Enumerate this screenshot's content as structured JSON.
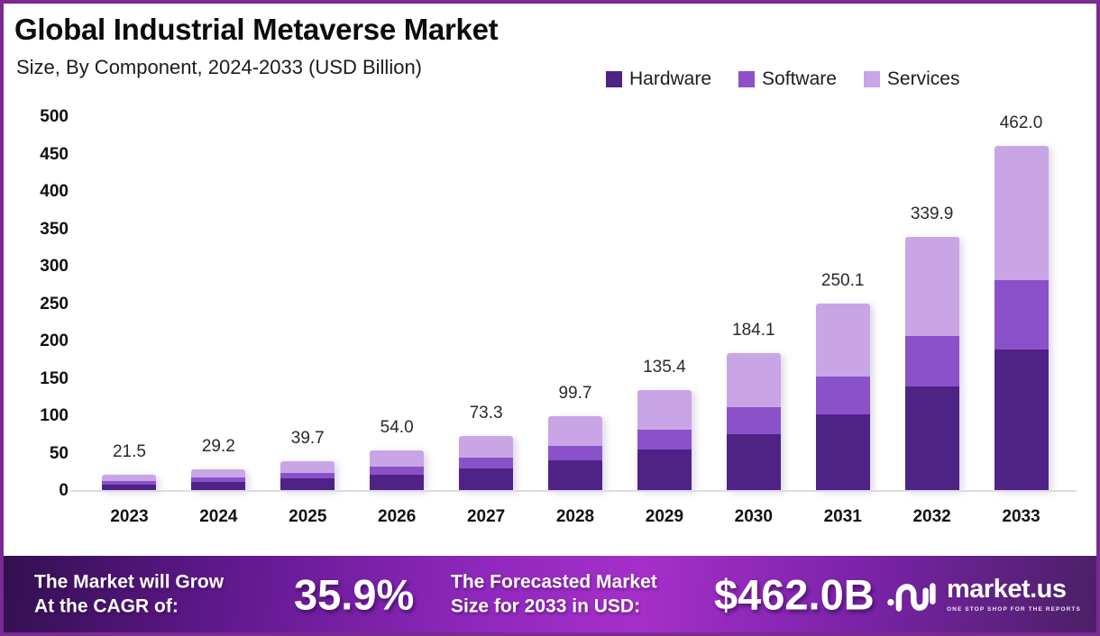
{
  "header": {
    "title": "Global Industrial Metaverse Market",
    "subtitle": "Size, By Component, 2024-2033 (USD Billion)"
  },
  "chart_data": {
    "type": "bar",
    "stacked": true,
    "title": "Global Industrial Metaverse Market",
    "subtitle": "Size, By Component, 2024-2033 (USD Billion)",
    "unit": "USD Billion",
    "categories": [
      "2023",
      "2024",
      "2025",
      "2026",
      "2027",
      "2028",
      "2029",
      "2030",
      "2031",
      "2032",
      "2033"
    ],
    "totals": [
      21.5,
      29.2,
      39.7,
      54.0,
      73.3,
      99.7,
      135.4,
      184.1,
      250.1,
      339.9,
      462.0
    ],
    "series": [
      {
        "name": "Hardware",
        "color": "#4F2286",
        "values": [
          8.8,
          12.0,
          16.3,
          22.1,
          30.1,
          40.9,
          55.5,
          75.5,
          102.5,
          139.4,
          189.4
        ]
      },
      {
        "name": "Software",
        "color": "#8B51C9",
        "values": [
          4.3,
          5.8,
          7.9,
          10.8,
          14.7,
          19.9,
          26.4,
          36.8,
          50.0,
          68.0,
          92.4
        ]
      },
      {
        "name": "Services",
        "color": "#C9A5E6",
        "values": [
          8.4,
          11.4,
          15.5,
          21.1,
          28.5,
          38.9,
          53.5,
          71.8,
          97.6,
          132.5,
          180.2
        ]
      }
    ],
    "ylim": [
      0,
      500
    ],
    "yticks": [
      0,
      50,
      100,
      150,
      200,
      250,
      300,
      350,
      400,
      450,
      500
    ],
    "grid": false,
    "legend_position": "top-right"
  },
  "banner": {
    "cagr_label_line1": "The Market will Grow",
    "cagr_label_line2": "At the CAGR of:",
    "cagr_value": "35.9%",
    "forecast_label_line1": "The Forecasted Market",
    "forecast_label_line2": "Size for 2033 in USD:",
    "forecast_value": "$462.0B",
    "logo_text": "market.us",
    "logo_tagline": "ONE STOP SHOP FOR THE REPORTS"
  },
  "colors": {
    "frame_border": "#7A2A90",
    "axis_line": "#DCDCE2",
    "banner_gradient_left": "#33104F",
    "banner_gradient_center": "#A62FCA",
    "banner_gradient_right": "#4B2066"
  }
}
